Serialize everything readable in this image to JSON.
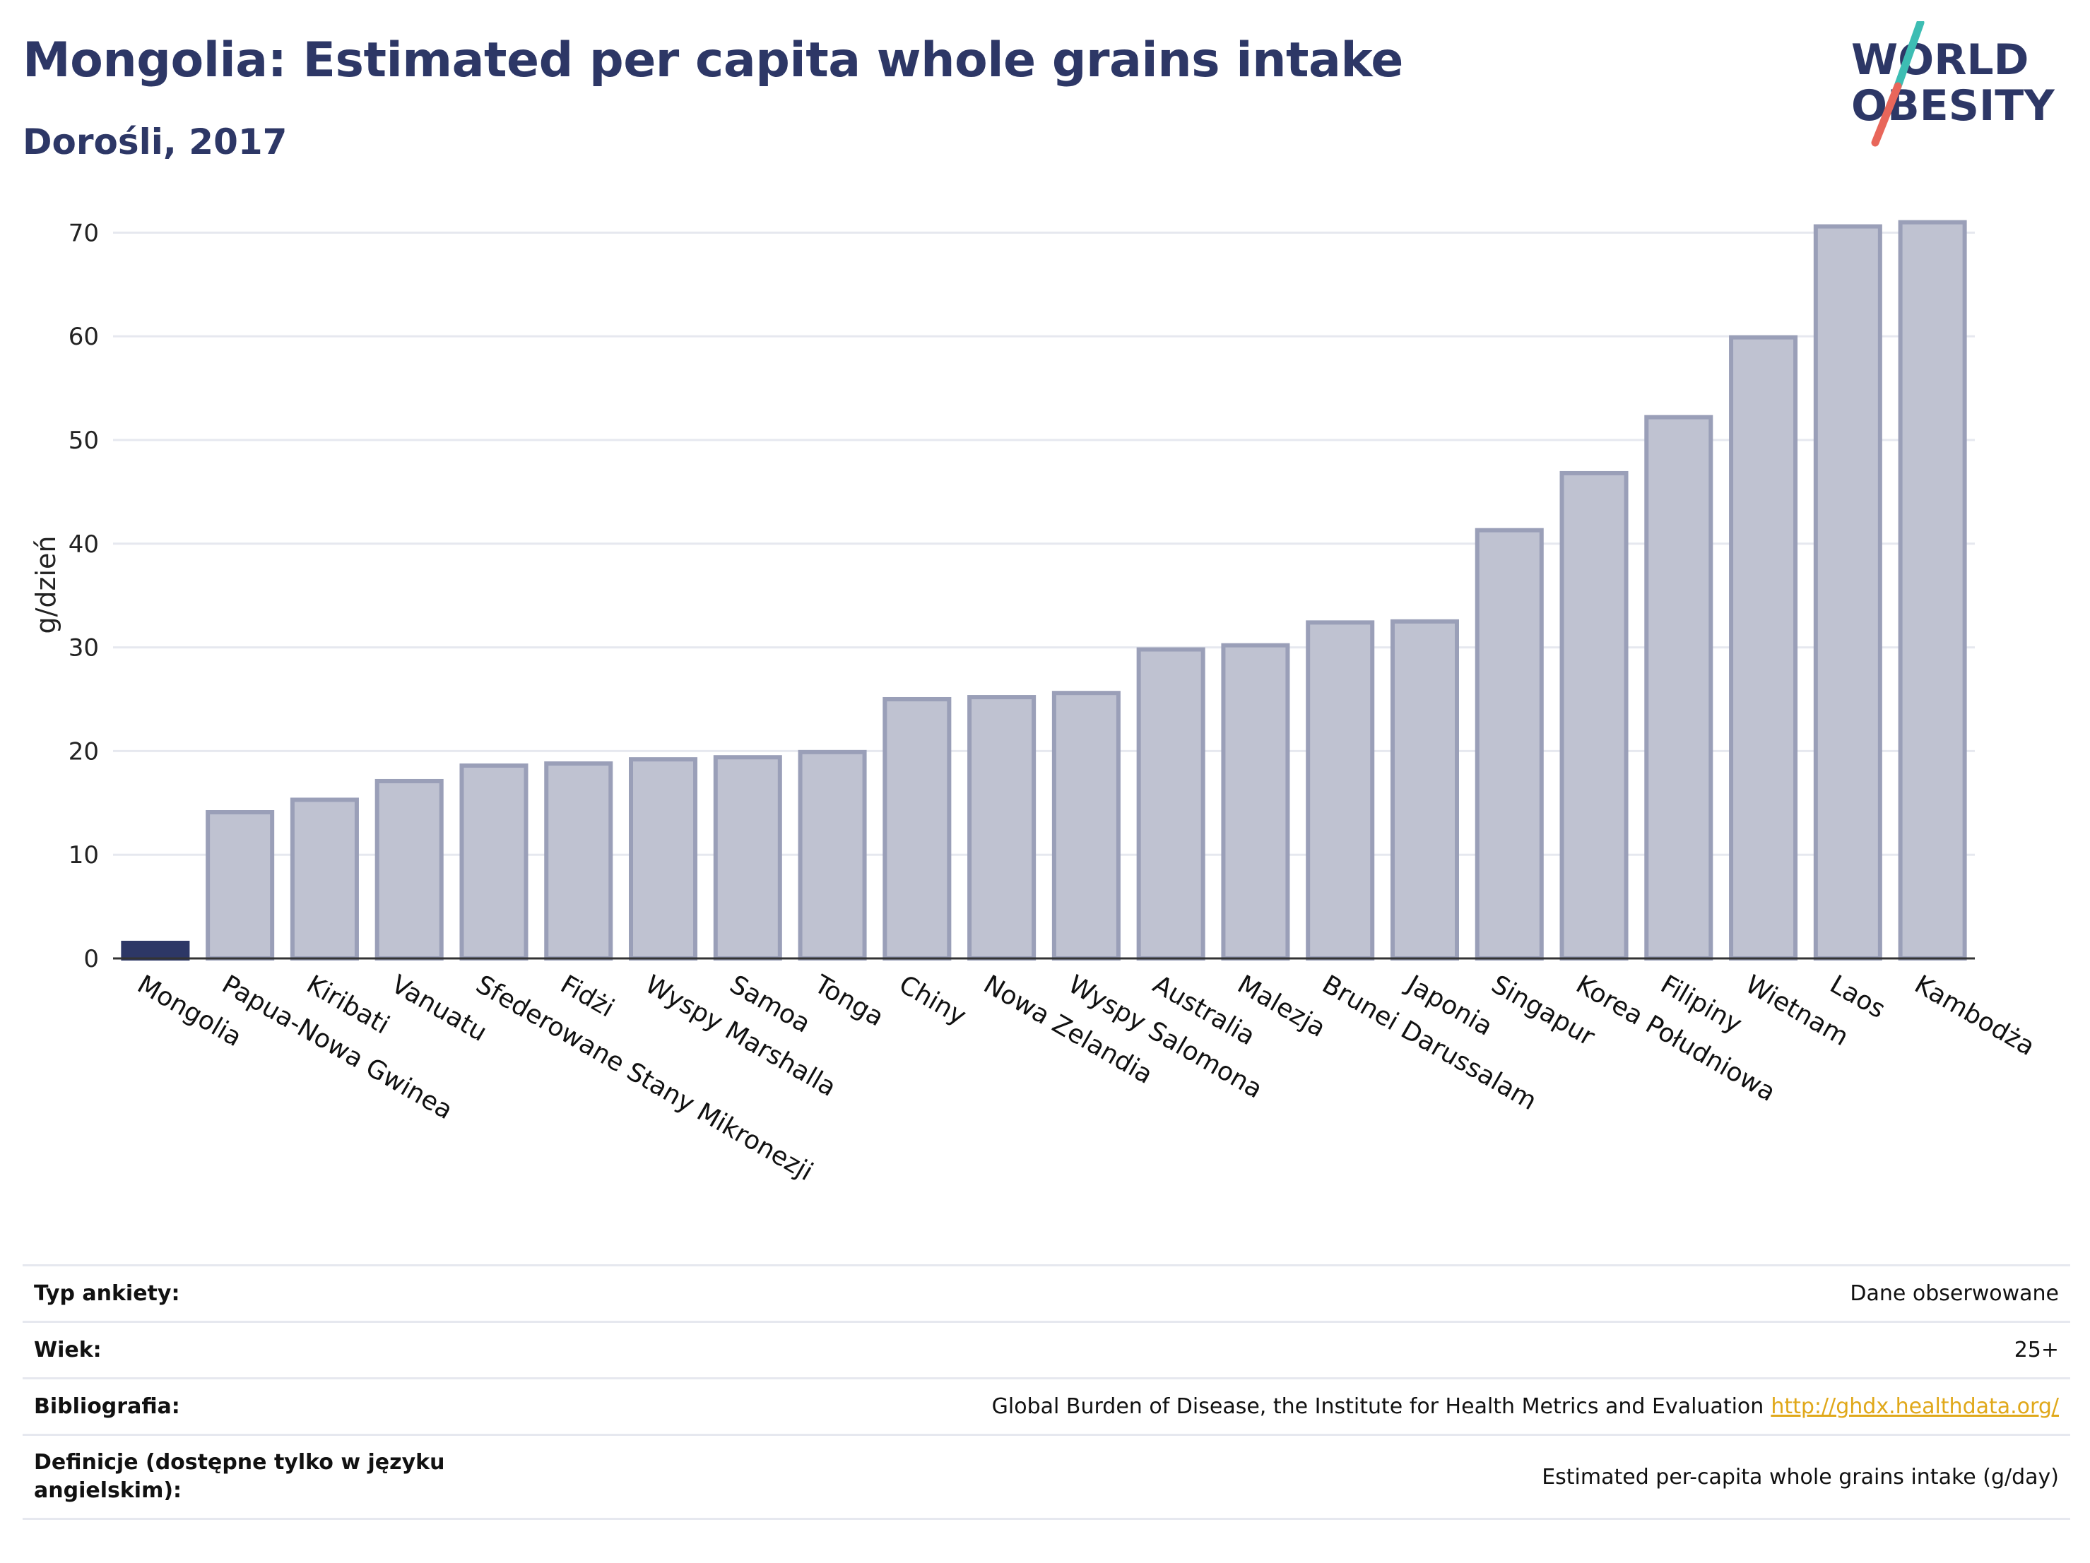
{
  "header": {
    "title": "Mongolia: Estimated per capita whole grains intake",
    "subtitle": "Dorośli, 2017"
  },
  "logo": {
    "line1": "WORLD",
    "line2": "OBESITY",
    "colors": {
      "text": "#2d3766",
      "slash_teal": "#3dbdb3",
      "slash_coral": "#e8665a"
    }
  },
  "colors": {
    "highlight_bar": "#2d3766",
    "bar_fill": "#bfc2d1",
    "bar_stroke": "#9a9fb8",
    "grid": "#e6e8ef",
    "link": "#e0a81a"
  },
  "chart_data": {
    "type": "bar",
    "ylabel": "g/dzień",
    "xlabel": "",
    "ylim": [
      0,
      72
    ],
    "yticks": [
      0,
      10,
      20,
      30,
      40,
      50,
      60,
      70
    ],
    "grid": true,
    "highlight": "Mongolia",
    "categories": [
      "Mongolia",
      "Papua-Nowa Gwinea",
      "Kiribati",
      "Vanuatu",
      "Sfederowane Stany Mikronezji",
      "Fidżi",
      "Wyspy Marshalla",
      "Samoa",
      "Tonga",
      "Chiny",
      "Nowa Zelandia",
      "Wyspy Salomona",
      "Australia",
      "Malezja",
      "Brunei Darussalam",
      "Japonia",
      "Singapur",
      "Korea Południowa",
      "Filipiny",
      "Wietnam",
      "Laos",
      "Kambodża"
    ],
    "values": [
      1.5,
      14.1,
      15.3,
      17.1,
      18.6,
      18.8,
      19.2,
      19.4,
      19.9,
      25.0,
      25.2,
      25.6,
      29.8,
      30.2,
      32.4,
      32.5,
      41.3,
      46.8,
      52.2,
      59.9,
      70.6,
      71.0
    ]
  },
  "meta": {
    "rows": [
      {
        "label": "Typ ankiety:",
        "value": "Dane obserwowane"
      },
      {
        "label": "Wiek:",
        "value": "25+"
      },
      {
        "label": "Bibliografia:",
        "value": "Global Burden of Disease, the Institute for Health Metrics and Evaluation",
        "link": "http://ghdx.healthdata.org/"
      },
      {
        "label": "Definicje (dostępne tylko w języku angielskim):",
        "value": "Estimated per-capita whole grains intake (g/day)"
      }
    ]
  }
}
